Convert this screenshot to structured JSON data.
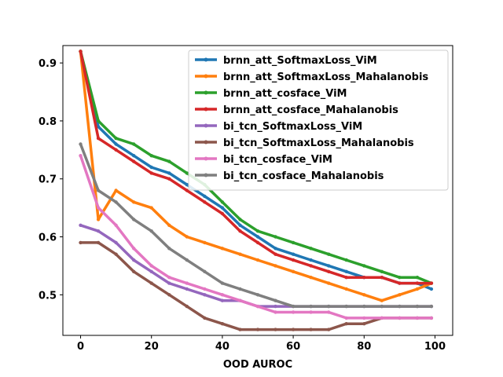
{
  "chart_data": {
    "type": "line",
    "title": "",
    "xlabel": "OOD AUROC",
    "ylabel": "",
    "xlim": [
      -5,
      105
    ],
    "ylim": [
      0.43,
      0.93
    ],
    "xticks": [
      0,
      20,
      40,
      60,
      80,
      100
    ],
    "yticks": [
      0.5,
      0.6,
      0.7,
      0.8,
      0.9
    ],
    "x_tick_labels": [
      "0",
      "20",
      "40",
      "60",
      "80",
      "100"
    ],
    "y_tick_labels": [
      "0.5",
      "0.6",
      "0.7",
      "0.8",
      "0.9"
    ],
    "grid": false,
    "legend_position": "top-right",
    "x": [
      0,
      5,
      10,
      15,
      20,
      25,
      30,
      35,
      40,
      45,
      50,
      55,
      60,
      65,
      70,
      75,
      80,
      85,
      90,
      95,
      99
    ],
    "series": [
      {
        "name": "brnn_att_SoftmaxLoss_ViM",
        "color": "#1f77b4",
        "values": [
          0.92,
          0.79,
          0.76,
          0.74,
          0.72,
          0.71,
          0.69,
          0.67,
          0.65,
          0.62,
          0.6,
          0.58,
          0.57,
          0.56,
          0.55,
          0.54,
          0.53,
          0.53,
          0.52,
          0.52,
          0.51
        ]
      },
      {
        "name": "brnn_att_SoftmaxLoss_Mahalanobis",
        "color": "#ff7f0e",
        "values": [
          0.92,
          0.63,
          0.68,
          0.66,
          0.65,
          0.62,
          0.6,
          0.59,
          0.58,
          0.57,
          0.56,
          0.55,
          0.54,
          0.53,
          0.52,
          0.51,
          0.5,
          0.49,
          0.5,
          0.51,
          0.52
        ]
      },
      {
        "name": "brnn_att_cosface_ViM",
        "color": "#2ca02c",
        "values": [
          0.92,
          0.8,
          0.77,
          0.76,
          0.74,
          0.73,
          0.71,
          0.69,
          0.66,
          0.63,
          0.61,
          0.6,
          0.59,
          0.58,
          0.57,
          0.56,
          0.55,
          0.54,
          0.53,
          0.53,
          0.52
        ]
      },
      {
        "name": "brnn_att_cosface_Mahalanobis",
        "color": "#d62728",
        "values": [
          0.92,
          0.77,
          0.75,
          0.73,
          0.71,
          0.7,
          0.68,
          0.66,
          0.64,
          0.61,
          0.59,
          0.57,
          0.56,
          0.55,
          0.54,
          0.53,
          0.53,
          0.53,
          0.52,
          0.52,
          0.52
        ]
      },
      {
        "name": "bi_tcn_SoftmaxLoss_ViM",
        "color": "#9467bd",
        "values": [
          0.62,
          0.61,
          0.59,
          0.56,
          0.54,
          0.52,
          0.51,
          0.5,
          0.49,
          0.49,
          0.48,
          0.48,
          0.48,
          0.48,
          0.48,
          0.48,
          0.48,
          0.48,
          0.48,
          0.48,
          0.48
        ]
      },
      {
        "name": "bi_tcn_SoftmaxLoss_Mahalanobis",
        "color": "#8c564b",
        "values": [
          0.59,
          0.59,
          0.57,
          0.54,
          0.52,
          0.5,
          0.48,
          0.46,
          0.45,
          0.44,
          0.44,
          0.44,
          0.44,
          0.44,
          0.44,
          0.45,
          0.45,
          0.46,
          0.46,
          0.46,
          0.46
        ]
      },
      {
        "name": "bi_tcn_cosface_ViM",
        "color": "#e377c2",
        "values": [
          0.74,
          0.65,
          0.62,
          0.58,
          0.55,
          0.53,
          0.52,
          0.51,
          0.5,
          0.49,
          0.48,
          0.47,
          0.47,
          0.47,
          0.47,
          0.46,
          0.46,
          0.46,
          0.46,
          0.46,
          0.46
        ]
      },
      {
        "name": "bi_tcn_cosface_Mahalanobis",
        "color": "#7f7f7f",
        "values": [
          0.76,
          0.68,
          0.66,
          0.63,
          0.61,
          0.58,
          0.56,
          0.54,
          0.52,
          0.51,
          0.5,
          0.49,
          0.48,
          0.48,
          0.48,
          0.48,
          0.48,
          0.48,
          0.48,
          0.48,
          0.48
        ]
      }
    ]
  }
}
